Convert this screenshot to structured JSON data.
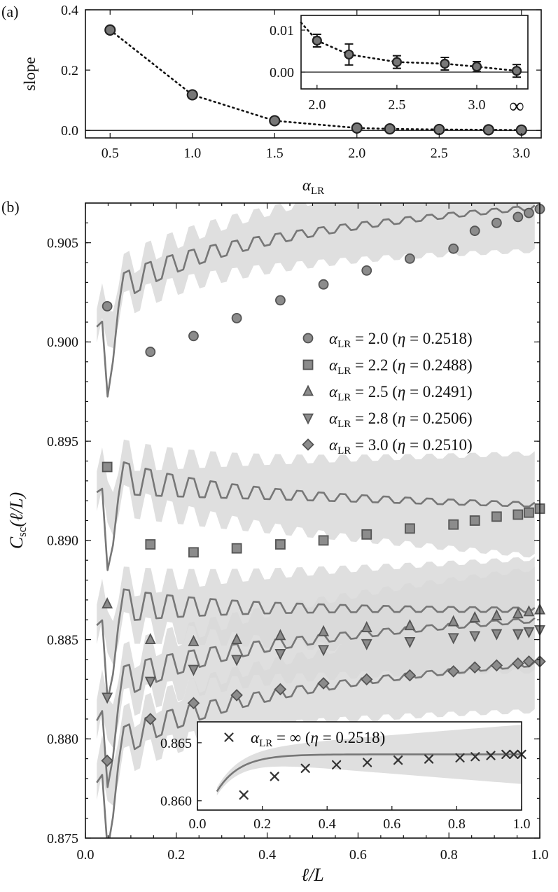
{
  "chart_data": [
    {
      "panel": "(a)",
      "type": "line",
      "xlabel": "α",
      "xlabel_sub": "LR",
      "ylabel": "slope",
      "x": [
        0.5,
        1.0,
        1.5,
        2.0,
        2.2,
        2.5,
        2.8,
        3.0
      ],
      "y": [
        0.333,
        0.118,
        0.032,
        0.008,
        0.005,
        0.003,
        0.002,
        0.001
      ],
      "xlim": [
        0.35,
        3.12
      ],
      "ylim": [
        -0.025,
        0.4
      ],
      "xticks": [
        "0.5",
        "1.0",
        "1.5",
        "2.0",
        "2.5",
        "3.0"
      ],
      "xtick_values": [
        0.5,
        1.0,
        1.5,
        2.0,
        2.5,
        3.0
      ],
      "yticks": [
        "0.0",
        "0.2",
        "0.4"
      ],
      "ytick_values": [
        0.0,
        0.2,
        0.4
      ],
      "inset": {
        "x": [
          2.0,
          2.2,
          2.5,
          2.8,
          3.0,
          3.25
        ],
        "y": [
          0.0075,
          0.0042,
          0.0024,
          0.002,
          0.0013,
          0.0003
        ],
        "err": [
          0.0015,
          0.0025,
          0.0015,
          0.0015,
          0.0012,
          0.0015
        ],
        "xlim": [
          1.9,
          3.32
        ],
        "ylim": [
          -0.004,
          0.0135
        ],
        "xticks": [
          "2.0",
          "2.5",
          "3.0",
          "∞"
        ],
        "xtick_values": [
          2.0,
          2.5,
          3.0,
          3.25
        ],
        "yticks": [
          "0.00",
          "0.01"
        ],
        "ytick_values": [
          0.0,
          0.01
        ]
      }
    },
    {
      "panel": "(b)",
      "type": "scatter",
      "xlabel": "ℓ/L",
      "ylabel_main": "C",
      "ylabel_sub": "sc",
      "ylabel_rest": "(ℓ/L)",
      "xlim": [
        0.0,
        1.0
      ],
      "ylim": [
        0.875,
        0.907
      ],
      "xticks": [
        "0.0",
        "0.2",
        "0.4",
        "0.6",
        "0.8",
        "1.0"
      ],
      "xtick_values": [
        0.0,
        0.2,
        0.4,
        0.6,
        0.8,
        1.0
      ],
      "yticks": [
        "0.875",
        "0.880",
        "0.885",
        "0.890",
        "0.895",
        "0.900",
        "0.905"
      ],
      "ytick_values": [
        0.875,
        0.88,
        0.885,
        0.89,
        0.895,
        0.9,
        0.905
      ],
      "x": [
        0.048,
        0.143,
        0.238,
        0.333,
        0.429,
        0.524,
        0.619,
        0.714,
        0.81,
        0.857,
        0.905,
        0.952,
        0.976,
        1.0
      ],
      "series": [
        {
          "name": "2.0",
          "eta": "0.2518",
          "marker": "circle",
          "values": [
            0.9018,
            0.8995,
            0.9003,
            0.9012,
            0.9021,
            0.9029,
            0.9036,
            0.9042,
            0.9047,
            0.9056,
            0.906,
            0.9063,
            0.9065,
            0.9067
          ],
          "fit_start": 0.9017,
          "fit_end": 0.9068,
          "band": 0.0022
        },
        {
          "name": "2.2",
          "eta": "0.2488",
          "marker": "square",
          "values": [
            0.8937,
            0.8898,
            0.8894,
            0.8896,
            0.8898,
            0.89,
            0.8903,
            0.8906,
            0.8908,
            0.891,
            0.8912,
            0.8913,
            0.8914,
            0.8916
          ],
          "fit_start": 0.8935,
          "fit_end": 0.8918,
          "band": 0.0026
        },
        {
          "name": "2.5",
          "eta": "0.2491",
          "marker": "triangle-up",
          "values": [
            0.8868,
            0.885,
            0.8849,
            0.885,
            0.8852,
            0.8854,
            0.8856,
            0.8857,
            0.8859,
            0.8861,
            0.8862,
            0.8863,
            0.8864,
            0.8865
          ],
          "fit_start": 0.8868,
          "fit_end": 0.8865,
          "band": 0.0026
        },
        {
          "name": "2.8",
          "eta": "0.2506",
          "marker": "triangle-down",
          "values": [
            0.8821,
            0.8829,
            0.8835,
            0.884,
            0.8843,
            0.8845,
            0.8848,
            0.8849,
            0.8851,
            0.8852,
            0.8853,
            0.8853,
            0.8854,
            0.8855
          ],
          "fit_start": 0.882,
          "fit_end": 0.886,
          "band": 0.0026
        },
        {
          "name": "3.0",
          "eta": "0.2510",
          "marker": "diamond",
          "values": [
            0.8789,
            0.881,
            0.8818,
            0.8822,
            0.8825,
            0.8828,
            0.883,
            0.8832,
            0.8834,
            0.8836,
            0.8837,
            0.8838,
            0.8839,
            0.8839
          ],
          "fit_start": 0.8788,
          "fit_end": 0.8838,
          "band": 0.0024
        }
      ],
      "inset": {
        "label": "∞",
        "eta": "0.2518",
        "marker": "x",
        "x": [
          0.143,
          0.238,
          0.333,
          0.429,
          0.524,
          0.619,
          0.714,
          0.81,
          0.857,
          0.905,
          0.952,
          0.976,
          1.0
        ],
        "y": [
          0.8605,
          0.8621,
          0.8628,
          0.8631,
          0.8633,
          0.8635,
          0.8636,
          0.8637,
          0.8638,
          0.8639,
          0.864,
          0.864,
          0.864
        ],
        "xlim": [
          0.0,
          1.0
        ],
        "ylim": [
          0.8592,
          0.8668
        ],
        "xticks": [
          "0.0",
          "0.2",
          "0.4",
          "0.6",
          "0.8",
          "1.0"
        ],
        "xtick_values": [
          0.0,
          0.2,
          0.4,
          0.6,
          0.8,
          1.0
        ],
        "yticks": [
          "0.860",
          "0.865"
        ],
        "ytick_values": [
          0.86,
          0.865
        ]
      }
    }
  ]
}
